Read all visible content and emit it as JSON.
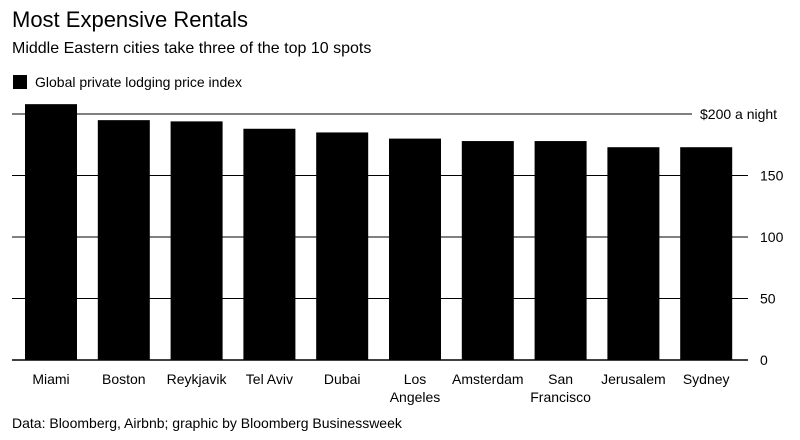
{
  "header": {
    "title": "Most Expensive Rentals",
    "subtitle": "Middle Eastern cities take three of the top 10 spots"
  },
  "legend": {
    "label": "Global private lodging price index",
    "color": "#000000"
  },
  "footer": {
    "source": "Data: Bloomberg, Airbnb; graphic by Bloomberg Businessweek"
  },
  "chart_data": {
    "type": "bar",
    "title": "Most Expensive Rentals",
    "subtitle": "Middle Eastern cities take three of the top 10 spots",
    "categories": [
      [
        "Miami"
      ],
      [
        "Boston"
      ],
      [
        "Reykjavik"
      ],
      [
        "Tel Aviv"
      ],
      [
        "Dubai"
      ],
      [
        "Los",
        "Angeles"
      ],
      [
        "Amsterdam"
      ],
      [
        "San",
        "Francisco"
      ],
      [
        "Jerusalem"
      ],
      [
        "Sydney"
      ]
    ],
    "series": [
      {
        "name": "Global private lodging price index",
        "color": "#000000",
        "values": [
          208,
          195,
          194,
          188,
          185,
          180,
          178,
          178,
          173,
          173
        ]
      }
    ],
    "ylim": [
      0,
      200
    ],
    "yticks": [
      {
        "value": 0,
        "label": "0"
      },
      {
        "value": 50,
        "label": "50"
      },
      {
        "value": 100,
        "label": "100"
      },
      {
        "value": 150,
        "label": "150"
      },
      {
        "value": 200,
        "label": "$200 a night"
      }
    ],
    "grid": true,
    "xlabel": "",
    "ylabel": "",
    "legend_position": "top-left"
  }
}
